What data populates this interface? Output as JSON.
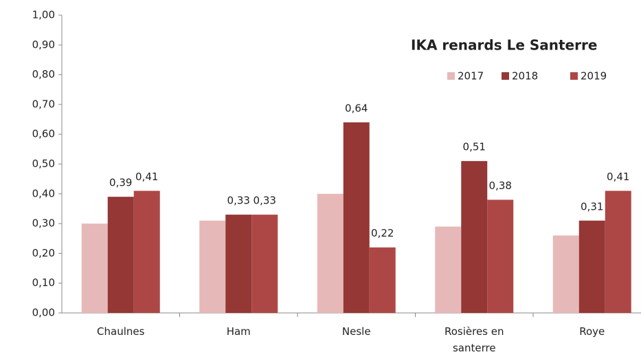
{
  "chart_data": {
    "type": "bar",
    "title": "IKA renards Le Santerre",
    "categories": [
      "Chaulnes",
      "Ham",
      "Nesle",
      "Rosières en santerre",
      "Roye"
    ],
    "series": [
      {
        "name": "2017",
        "color": "#e6b9b8",
        "values": [
          0.3,
          0.31,
          0.4,
          0.29,
          0.26
        ]
      },
      {
        "name": "2018",
        "color": "#953735",
        "values": [
          0.39,
          0.33,
          0.64,
          0.51,
          0.31
        ],
        "value_labels": [
          "0,39",
          "0,33",
          "0,64",
          "0,51",
          "0,31"
        ]
      },
      {
        "name": "2019",
        "color": "#ad4746",
        "values": [
          0.41,
          0.33,
          0.22,
          0.38,
          0.41
        ],
        "value_labels": [
          "0,41",
          "0,33",
          "0,22",
          "0,38",
          "0,41"
        ]
      }
    ],
    "ylim": [
      0,
      1
    ],
    "yticks": [
      {
        "value": 0,
        "label": "0,00"
      },
      {
        "value": 0.1,
        "label": "0,10"
      },
      {
        "value": 0.2,
        "label": "0,20"
      },
      {
        "value": 0.3,
        "label": "0,30"
      },
      {
        "value": 0.4,
        "label": "0,40"
      },
      {
        "value": 0.5,
        "label": "0,50"
      },
      {
        "value": 0.6,
        "label": "0,60"
      },
      {
        "value": 0.7,
        "label": "0,70"
      },
      {
        "value": 0.8,
        "label": "0,80"
      },
      {
        "value": 0.9,
        "label": "0,90"
      },
      {
        "value": 1,
        "label": "1,00"
      }
    ],
    "grid": false,
    "legend": "top-right"
  }
}
